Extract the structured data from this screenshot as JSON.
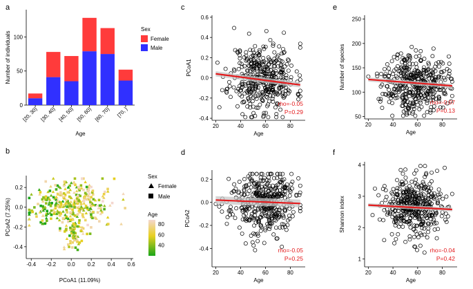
{
  "panels": {
    "a": {
      "letter": "a",
      "chart_type": "stacked-bar",
      "categories": [
        "[20, 30)",
        "[30, 40)",
        "[40, 50)",
        "[50, 60)",
        "[60, 70)",
        "[70, )"
      ],
      "series": [
        {
          "name": "Male",
          "values": [
            10,
            41,
            35,
            79,
            75,
            36
          ]
        },
        {
          "name": "Female",
          "values": [
            7,
            37,
            37,
            49,
            38,
            16
          ]
        }
      ],
      "xlabel": "Age",
      "ylabel": "Number of individuals",
      "ylim": [
        0,
        140
      ],
      "yticks": [
        0,
        50,
        100
      ],
      "legend": {
        "title": "Sex",
        "items": [
          "Female",
          "Male"
        ]
      }
    },
    "b": {
      "letter": "b",
      "chart_type": "scatter",
      "xlabel": "PCoA1 (11.09%)",
      "ylabel": "PCoA2 (7.25%)",
      "xlim": [
        -0.45,
        0.62
      ],
      "ylim": [
        -0.52,
        0.32
      ],
      "xticks": [
        -0.4,
        -0.2,
        0.0,
        0.2,
        0.4,
        0.6
      ],
      "xtick_labels": [
        "-0.4",
        "-0.2",
        "0.0",
        "0.2",
        "0.4",
        "0.6"
      ],
      "yticks": [
        -0.4,
        -0.2,
        0.0,
        0.2
      ],
      "ytick_labels": [
        "-0.4",
        "-0.2",
        "0.0",
        "0.2"
      ],
      "legend_sex": {
        "title": "Sex",
        "items": [
          "Female",
          "Male"
        ]
      },
      "legend_age": {
        "title": "Age",
        "ticks": [
          80,
          60,
          40
        ],
        "range": [
          20,
          88
        ]
      },
      "n_points": 420
    },
    "c": {
      "letter": "c",
      "chart_type": "scatter-regression",
      "xlabel": "Age",
      "ylabel": "PCoA1",
      "xlim": [
        17,
        92
      ],
      "ylim": [
        -0.42,
        0.62
      ],
      "xticks": [
        20,
        40,
        60,
        80
      ],
      "yticks": [
        -0.4,
        -0.2,
        0.0,
        0.2,
        0.4,
        0.6
      ],
      "ytick_labels": [
        "-0.4",
        "-0.2",
        "0.0",
        "0.2",
        "0.4",
        "0.6"
      ],
      "y_mean": 0.0,
      "y_sd": 0.17,
      "fit": {
        "x": [
          20,
          88
        ],
        "y": [
          0.04,
          -0.07
        ]
      },
      "stats": {
        "rho": "rho=-0.05",
        "p": "P=0.29"
      },
      "n_points": 420
    },
    "d": {
      "letter": "d",
      "chart_type": "scatter-regression",
      "xlabel": "Age",
      "ylabel": "PCoA2",
      "xlim": [
        17,
        92
      ],
      "ylim": [
        -0.56,
        0.28
      ],
      "xticks": [
        20,
        40,
        60,
        80
      ],
      "yticks": [
        -0.4,
        -0.2,
        0.0,
        0.2
      ],
      "ytick_labels": [
        "-0.4",
        "-0.2",
        "0.0",
        "0.2"
      ],
      "y_mean": 0.0,
      "y_sd": 0.14,
      "fit": {
        "x": [
          20,
          88
        ],
        "y": [
          0.02,
          -0.01
        ]
      },
      "stats": {
        "rho": "rho=-0.05",
        "p": "P=0.25"
      },
      "n_points": 420
    },
    "e": {
      "letter": "e",
      "chart_type": "scatter-regression",
      "xlabel": "Age",
      "ylabel": "Number of species",
      "xlim": [
        17,
        92
      ],
      "ylim": [
        45,
        258
      ],
      "xticks": [
        20,
        40,
        60,
        80
      ],
      "yticks": [
        50,
        100,
        150,
        200,
        250
      ],
      "ytick_labels": [
        "50",
        "100",
        "150",
        "200",
        "250"
      ],
      "y_mean": 120,
      "y_sd": 30,
      "fit": {
        "x": [
          20,
          88
        ],
        "y": [
          126,
          113
        ]
      },
      "stats": {
        "rho": "rho=-0.07",
        "p": "P=0.13"
      },
      "n_points": 420
    },
    "f": {
      "letter": "f",
      "chart_type": "scatter-regression",
      "xlabel": "Age",
      "ylabel": "Shannon index",
      "xlim": [
        17,
        92
      ],
      "ylim": [
        0.75,
        4.1
      ],
      "xticks": [
        20,
        40,
        60,
        80
      ],
      "yticks": [
        1,
        2,
        3,
        4
      ],
      "ytick_labels": [
        "1",
        "2",
        "3",
        "4"
      ],
      "y_mean": 2.65,
      "y_sd": 0.48,
      "fit": {
        "x": [
          20,
          88
        ],
        "y": [
          2.72,
          2.58
        ]
      },
      "stats": {
        "rho": "rho=-0.04",
        "p": "P=0.42"
      },
      "n_points": 420
    }
  },
  "colors": {
    "female": "#ff3b3b",
    "male": "#3030ff",
    "fit_line": "#e31a1c",
    "ci_band": "#c8c8c8",
    "stats_text": "#e31a1c",
    "age_low": "#1aa61a",
    "age_mid": "#e8d020",
    "age_high": "#f4d7d0"
  }
}
